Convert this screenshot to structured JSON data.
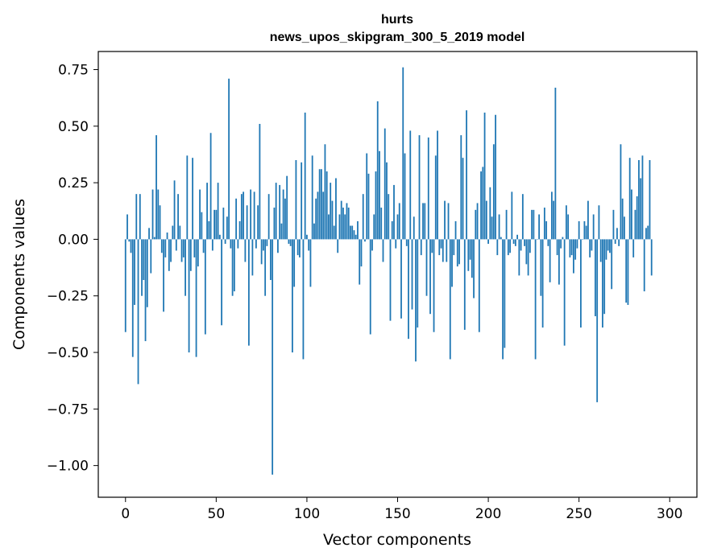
{
  "chart_data": {
    "type": "bar",
    "title": "hurts",
    "subtitle": "news_upos_skipgram_300_5_2019 model",
    "xlabel": "Vector components",
    "ylabel": "Components values",
    "xlim": [
      -15,
      315
    ],
    "ylim": [
      -1.14,
      0.83
    ],
    "xticks": [
      0,
      50,
      100,
      150,
      200,
      250,
      300
    ],
    "xtick_labels": [
      "0",
      "50",
      "100",
      "150",
      "200",
      "250",
      "300"
    ],
    "yticks": [
      0.75,
      0.5,
      0.25,
      0.0,
      -0.25,
      -0.5,
      -0.75,
      -1.0
    ],
    "ytick_labels": [
      "0.75",
      "0.50",
      "0.25",
      "0.00",
      "−0.25",
      "−0.50",
      "−0.75",
      "−1.00"
    ],
    "bar_color": "#1f77b4",
    "grid": false,
    "values": [
      -0.41,
      0.11,
      -0.01,
      -0.06,
      -0.52,
      -0.29,
      0.2,
      -0.64,
      0.2,
      -0.25,
      -0.18,
      -0.45,
      -0.3,
      0.05,
      -0.15,
      0.22,
      0.01,
      0.46,
      0.22,
      0.15,
      -0.06,
      -0.32,
      -0.08,
      0.03,
      -0.14,
      -0.1,
      0.06,
      0.26,
      -0.05,
      0.2,
      0.06,
      -0.1,
      -0.08,
      -0.25,
      0.37,
      -0.5,
      -0.14,
      0.36,
      -0.08,
      -0.52,
      -0.12,
      0.22,
      0.12,
      -0.06,
      -0.42,
      0.25,
      0.08,
      0.47,
      -0.05,
      0.13,
      0.13,
      0.25,
      0.02,
      -0.38,
      0.14,
      -0.02,
      0.1,
      0.71,
      -0.04,
      -0.25,
      -0.23,
      0.18,
      -0.04,
      0.08,
      0.2,
      0.21,
      -0.1,
      0.15,
      -0.47,
      0.22,
      -0.16,
      0.21,
      -0.04,
      0.15,
      0.51,
      -0.11,
      -0.05,
      -0.25,
      -0.03,
      0.2,
      -0.18,
      -1.04,
      0.14,
      0.25,
      -0.06,
      0.24,
      0.07,
      0.22,
      0.18,
      0.28,
      -0.02,
      -0.03,
      -0.5,
      -0.21,
      0.35,
      -0.07,
      -0.08,
      0.34,
      -0.53,
      0.56,
      0.02,
      -0.05,
      -0.21,
      0.37,
      0.07,
      0.18,
      0.21,
      0.31,
      0.31,
      0.21,
      0.42,
      0.3,
      0.11,
      0.25,
      0.17,
      0.06,
      0.27,
      -0.06,
      0.11,
      0.17,
      0.14,
      0.11,
      0.16,
      0.14,
      0.06,
      0.06,
      0.04,
      0.02,
      0.08,
      -0.2,
      -0.12,
      0.2,
      -0.01,
      0.38,
      0.29,
      -0.42,
      -0.05,
      0.11,
      0.3,
      0.61,
      0.39,
      0.14,
      -0.1,
      0.49,
      0.34,
      0.2,
      -0.36,
      0.08,
      0.24,
      -0.04,
      0.11,
      0.16,
      -0.35,
      0.76,
      0.38,
      -0.03,
      -0.44,
      0.48,
      -0.31,
      0.1,
      -0.54,
      -0.39,
      0.46,
      -0.07,
      0.16,
      0.16,
      -0.25,
      0.45,
      -0.33,
      -0.06,
      -0.41,
      0.37,
      0.48,
      -0.07,
      -0.04,
      -0.1,
      0.17,
      -0.1,
      0.16,
      -0.53,
      -0.21,
      -0.07,
      0.08,
      -0.12,
      -0.11,
      0.46,
      0.36,
      -0.4,
      0.57,
      -0.14,
      -0.09,
      -0.17,
      -0.26,
      0.13,
      0.16,
      -0.41,
      0.3,
      0.32,
      0.56,
      0.17,
      -0.02,
      0.23,
      0.1,
      0.42,
      0.55,
      -0.07,
      0.11,
      0.01,
      -0.53,
      -0.48,
      0.13,
      -0.07,
      -0.06,
      0.21,
      -0.02,
      -0.03,
      0.02,
      -0.16,
      -0.05,
      0.2,
      -0.03,
      -0.11,
      -0.16,
      -0.06,
      0.13,
      0.13,
      -0.53,
      0.0,
      0.11,
      -0.25,
      -0.39,
      0.14,
      0.08,
      -0.03,
      -0.19,
      0.21,
      0.17,
      0.67,
      -0.07,
      -0.2,
      -0.04,
      0.01,
      -0.47,
      0.15,
      0.11,
      -0.08,
      -0.07,
      -0.15,
      -0.09,
      -0.04,
      0.08,
      -0.39,
      0.0,
      0.08,
      0.06,
      0.17,
      -0.08,
      -0.05,
      0.11,
      -0.34,
      -0.72,
      0.15,
      -0.1,
      -0.39,
      -0.33,
      -0.09,
      -0.05,
      -0.06,
      -0.22,
      0.13,
      -0.02,
      0.05,
      -0.03,
      0.42,
      0.18,
      0.1,
      -0.28,
      -0.29,
      0.36,
      0.22,
      -0.08,
      0.13,
      0.19,
      0.35,
      0.27,
      0.37,
      -0.23,
      0.05,
      0.06,
      0.35,
      -0.16
    ]
  }
}
